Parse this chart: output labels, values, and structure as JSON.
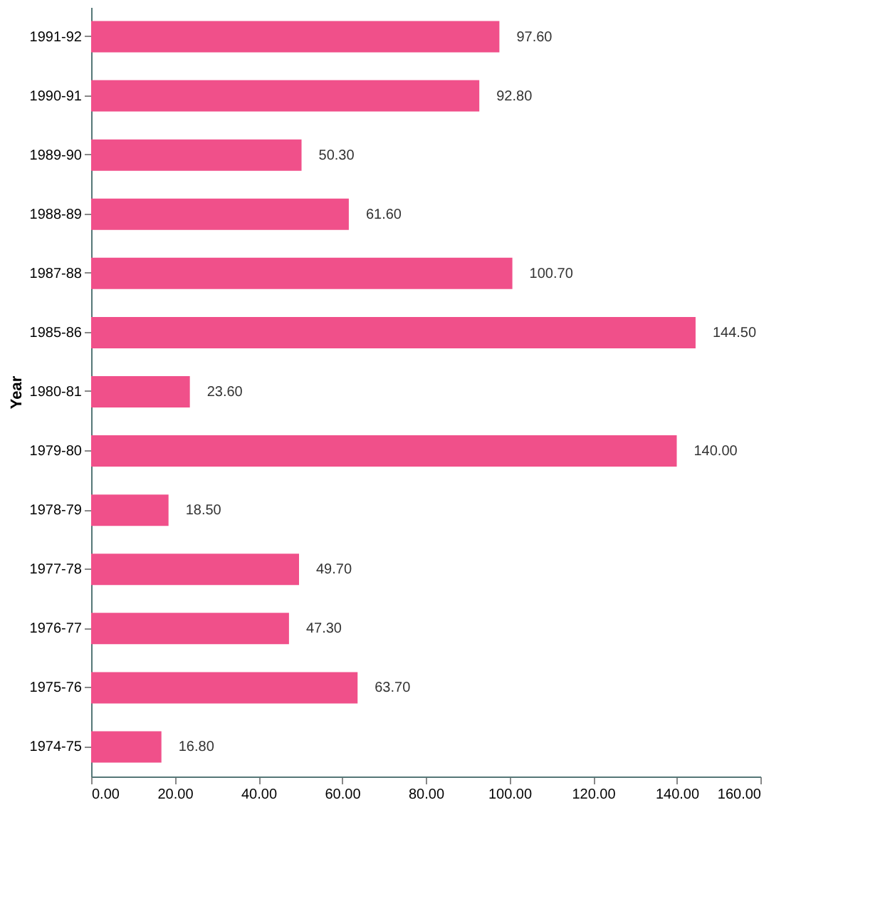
{
  "chart_data": {
    "type": "bar",
    "orientation": "horizontal",
    "ylabel": "Year",
    "categories": [
      "1991-92",
      "1990-91",
      "1989-90",
      "1988-89",
      "1987-88",
      "1985-86",
      "1980-81",
      "1979-80",
      "1978-79",
      "1977-78",
      "1976-77",
      "1975-76",
      "1974-75"
    ],
    "values": [
      97.6,
      92.8,
      50.3,
      61.6,
      100.7,
      144.5,
      23.6,
      140.0,
      18.5,
      49.7,
      47.3,
      63.7,
      16.8
    ],
    "value_labels": [
      "97.60",
      "92.80",
      "50.30",
      "61.60",
      "100.70",
      "144.50",
      "23.60",
      "140.00",
      "18.50",
      "49.70",
      "47.30",
      "63.70",
      "16.80"
    ],
    "color": "#f0508a",
    "xlim": [
      0,
      160
    ],
    "xticks": [
      {
        "value": 0,
        "label": "0.00"
      },
      {
        "value": 20,
        "label": "20.00"
      },
      {
        "value": 40,
        "label": "40.00"
      },
      {
        "value": 60,
        "label": "60.00"
      },
      {
        "value": 80,
        "label": "80.00"
      },
      {
        "value": 100,
        "label": "100.00"
      },
      {
        "value": 120,
        "label": "120.00"
      },
      {
        "value": 140,
        "label": "140.00"
      },
      {
        "value": 160,
        "label": "160.00"
      }
    ],
    "grid": false
  }
}
